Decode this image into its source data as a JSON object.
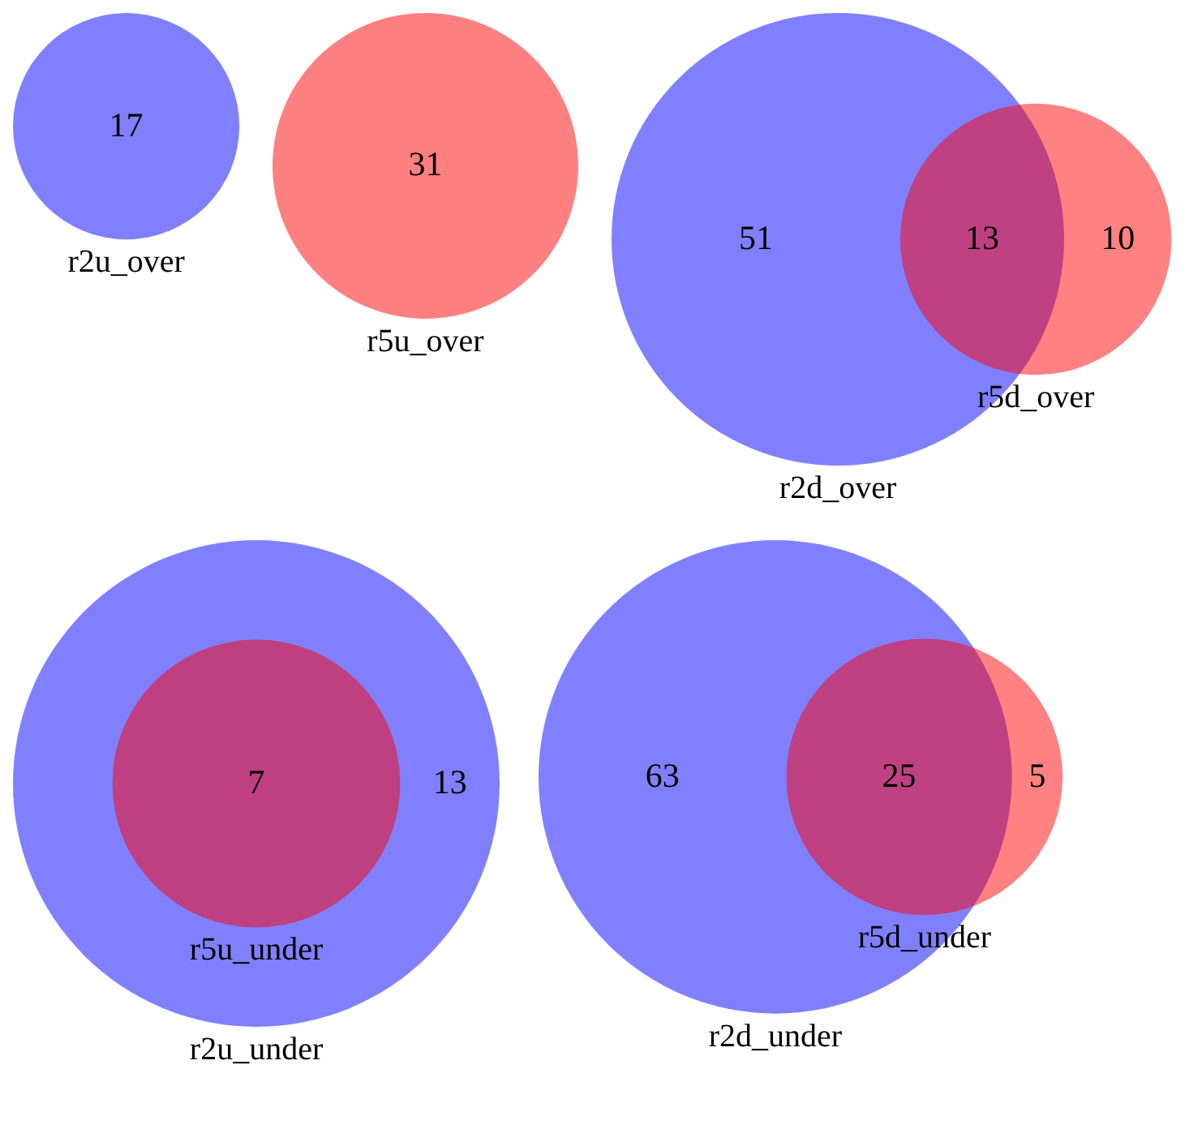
{
  "chart_data": [
    {
      "type": "other",
      "data_labels": true,
      "categories": [
        null
      ],
      "series": [
        {
          "name": "r2u_over",
          "color": "#8080ff",
          "values": [
            17
          ]
        }
      ]
    },
    {
      "type": "other",
      "data_labels": true,
      "categories": [
        null
      ],
      "series": [
        {
          "name": "r5u_over",
          "color": "#ff8080",
          "values": [
            31
          ]
        }
      ]
    },
    {
      "type": "other",
      "data_labels": true,
      "categories": [
        null,
        null,
        null
      ],
      "values": [
        51,
        13,
        10
      ],
      "colors": [
        "#8080ff",
        "#bf4080",
        "#ff8080"
      ],
      "annotations": [
        "r2d_over",
        "r5d_over"
      ]
    },
    {
      "type": "other",
      "data_labels": true,
      "categories": [
        null,
        null
      ],
      "values": [
        7,
        13
      ],
      "colors": [
        "#bf4080",
        "#8080ff"
      ],
      "annotations": [
        "r2u_under",
        "r5u_under"
      ]
    },
    {
      "type": "other",
      "data_labels": true,
      "categories": [
        null,
        null,
        null
      ],
      "values": [
        63,
        25,
        5
      ],
      "colors": [
        "#8080ff",
        "#bf4080",
        "#ff8080"
      ],
      "annotations": [
        "r2d_under",
        "r5d_under"
      ]
    }
  ]
}
